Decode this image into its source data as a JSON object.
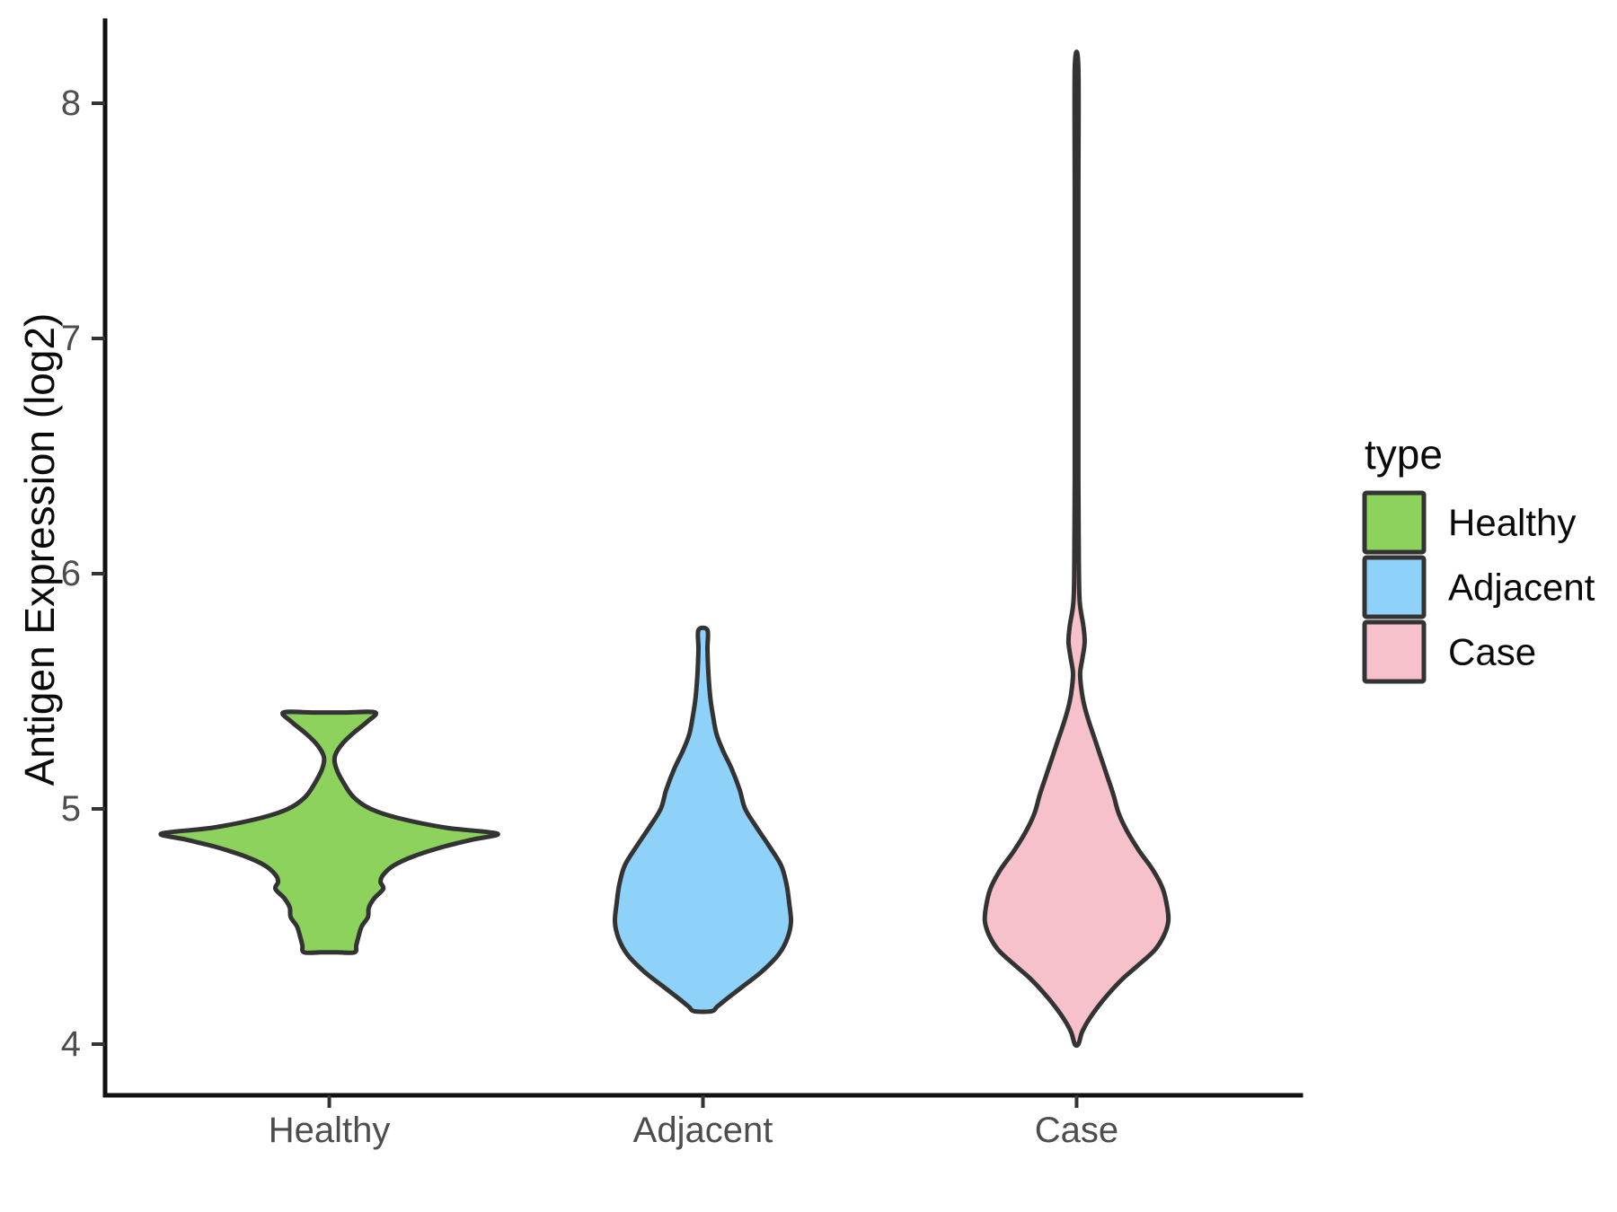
{
  "chart_data": {
    "type": "violin",
    "title": "",
    "xlabel": "",
    "ylabel": "Antigen Expression (log2)",
    "categories": [
      "Healthy",
      "Adjacent",
      "Case"
    ],
    "y_ticks": [
      8,
      7,
      6,
      5,
      4
    ],
    "ylim": [
      3.78,
      8.35
    ],
    "grid": "off",
    "outline_color": "#333333",
    "legend": {
      "title": "type",
      "position": "right",
      "entries": [
        {
          "label": "Healthy",
          "color": "#8CD25C"
        },
        {
          "label": "Adjacent",
          "color": "#8FD2F9"
        },
        {
          "label": "Case",
          "color": "#F6C1CB"
        }
      ]
    },
    "violins": [
      {
        "category": "Healthy",
        "color": "#8CD25C",
        "value_range": [
          4.39,
          5.41
        ],
        "peak_value": 4.89,
        "flat_top": true,
        "profile_units": "[expression value (log2), half-width px]",
        "profile": [
          [
            5.41,
            51
          ],
          [
            5.37,
            42
          ],
          [
            5.32,
            26
          ],
          [
            5.27,
            13
          ],
          [
            5.22,
            6
          ],
          [
            5.17,
            8
          ],
          [
            5.11,
            16
          ],
          [
            5.05,
            27
          ],
          [
            5.0,
            46
          ],
          [
            4.96,
            78
          ],
          [
            4.92,
            130
          ],
          [
            4.895,
            187
          ],
          [
            4.87,
            160
          ],
          [
            4.84,
            128
          ],
          [
            4.8,
            95
          ],
          [
            4.76,
            72
          ],
          [
            4.72,
            60
          ],
          [
            4.69,
            57
          ],
          [
            4.66,
            60
          ],
          [
            4.62,
            50
          ],
          [
            4.58,
            44
          ],
          [
            4.54,
            43
          ],
          [
            4.5,
            36
          ],
          [
            4.45,
            32
          ],
          [
            4.42,
            30
          ],
          [
            4.39,
            28
          ]
        ]
      },
      {
        "category": "Adjacent",
        "color": "#8FD2F9",
        "value_range": [
          4.14,
          5.76
        ],
        "peak_value": 4.52,
        "flat_top": false,
        "profile_units": "[expression value (log2), half-width px]",
        "profile": [
          [
            5.76,
            5
          ],
          [
            5.68,
            5
          ],
          [
            5.58,
            6
          ],
          [
            5.48,
            8
          ],
          [
            5.4,
            11
          ],
          [
            5.32,
            15
          ],
          [
            5.25,
            22
          ],
          [
            5.17,
            32
          ],
          [
            5.08,
            41
          ],
          [
            5.0,
            47
          ],
          [
            4.92,
            60
          ],
          [
            4.84,
            74
          ],
          [
            4.76,
            87
          ],
          [
            4.68,
            93
          ],
          [
            4.6,
            96
          ],
          [
            4.52,
            98
          ],
          [
            4.45,
            94
          ],
          [
            4.38,
            84
          ],
          [
            4.31,
            66
          ],
          [
            4.25,
            46
          ],
          [
            4.2,
            29
          ],
          [
            4.16,
            16
          ],
          [
            4.14,
            10
          ]
        ]
      },
      {
        "category": "Case",
        "color": "#F6C1CB",
        "value_range": [
          4.0,
          8.15
        ],
        "peak_value": 4.55,
        "flat_top": false,
        "profile_units": "[expression value (log2), half-width px]",
        "profile": [
          [
            8.15,
            2
          ],
          [
            7.6,
            2
          ],
          [
            7.0,
            2
          ],
          [
            6.4,
            2
          ],
          [
            6.05,
            2.5
          ],
          [
            5.88,
            3.5
          ],
          [
            5.78,
            7.5
          ],
          [
            5.71,
            9
          ],
          [
            5.64,
            6.5
          ],
          [
            5.58,
            4
          ],
          [
            5.52,
            5
          ],
          [
            5.45,
            8
          ],
          [
            5.38,
            13
          ],
          [
            5.3,
            20
          ],
          [
            5.22,
            27
          ],
          [
            5.14,
            34
          ],
          [
            5.06,
            41
          ],
          [
            4.98,
            47
          ],
          [
            4.9,
            57
          ],
          [
            4.82,
            70
          ],
          [
            4.74,
            85
          ],
          [
            4.66,
            96
          ],
          [
            4.58,
            101
          ],
          [
            4.52,
            102
          ],
          [
            4.46,
            97
          ],
          [
            4.4,
            87
          ],
          [
            4.34,
            70
          ],
          [
            4.28,
            52
          ],
          [
            4.22,
            37
          ],
          [
            4.16,
            24
          ],
          [
            4.1,
            13
          ],
          [
            4.05,
            6
          ],
          [
            4.0,
            2
          ]
        ]
      }
    ]
  }
}
